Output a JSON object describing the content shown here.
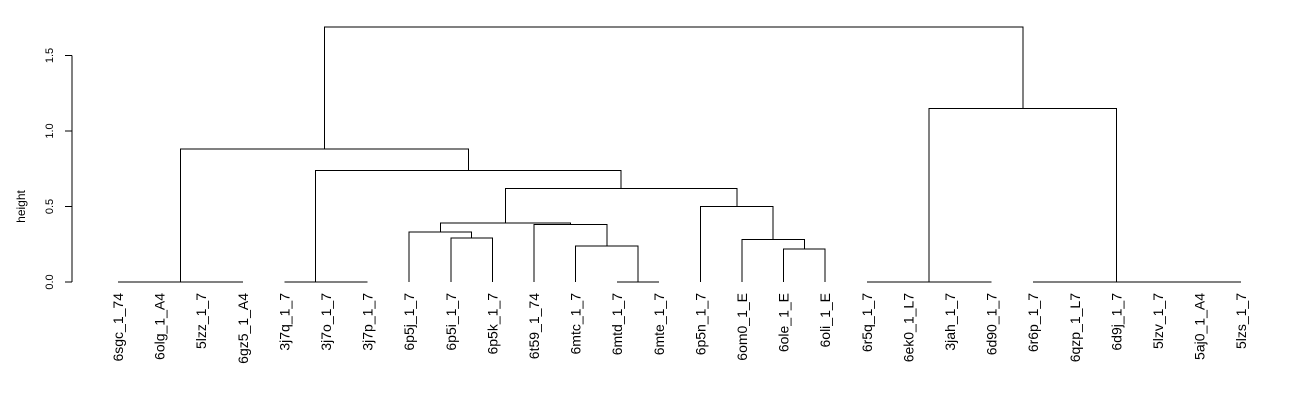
{
  "chart_data": {
    "type": "dendrogram",
    "ylabel": "height",
    "ylim": [
      0,
      1.75
    ],
    "yticks": [
      0.0,
      0.5,
      1.0,
      1.5
    ],
    "ytick_labels": [
      "0.0",
      "0.5",
      "1.0",
      "1.5"
    ],
    "leaves": [
      "6sgc_1_74",
      "6olg_1_A4",
      "5lzz_1_7",
      "6gz5_1_A4",
      "3j7q_1_7",
      "3j7o_1_7",
      "3j7p_1_7",
      "6p5j_1_7",
      "6p5i_1_7",
      "6p5k_1_7",
      "6t59_1_74",
      "6mtc_1_7",
      "6mtd_1_7",
      "6mte_1_7",
      "6p5n_1_7",
      "6om0_1_E",
      "6ole_1_E",
      "6oli_1_E",
      "6r5q_1_7",
      "6ek0_1_L7",
      "3jah_1_7",
      "6d90_1_7",
      "6r6p_1_7",
      "6qzp_1_L7",
      "6d9j_1_7",
      "5lzv_1_7",
      "5aj0_1_A4",
      "5lzs_1_7"
    ],
    "merges": [
      {
        "id": "n1",
        "children": [
          "L0",
          "L1"
        ],
        "height": 0.0
      },
      {
        "id": "n2",
        "children": [
          "L2",
          "L3"
        ],
        "height": 0.0
      },
      {
        "id": "n3",
        "children": [
          "n1",
          "n2"
        ],
        "height": 0.0
      },
      {
        "id": "n4",
        "children": [
          "L5",
          "L6"
        ],
        "height": 0.0
      },
      {
        "id": "n5",
        "children": [
          "L4",
          "n4"
        ],
        "height": 0.0
      },
      {
        "id": "n6",
        "children": [
          "L12",
          "L13"
        ],
        "height": 0.0
      },
      {
        "id": "n7",
        "children": [
          "L18",
          "L19"
        ],
        "height": 0.0
      },
      {
        "id": "n8",
        "children": [
          "L20",
          "L21"
        ],
        "height": 0.0
      },
      {
        "id": "n9",
        "children": [
          "n7",
          "n8"
        ],
        "height": 0.0
      },
      {
        "id": "n10",
        "children": [
          "L22",
          "L23"
        ],
        "height": 0.0
      },
      {
        "id": "n11",
        "children": [
          "L24",
          "L25"
        ],
        "height": 0.0
      },
      {
        "id": "n12",
        "children": [
          "L26",
          "L27"
        ],
        "height": 0.0
      },
      {
        "id": "n13",
        "children": [
          "n11",
          "n12"
        ],
        "height": 0.0
      },
      {
        "id": "n14",
        "children": [
          "n10",
          "n13"
        ],
        "height": 0.0
      },
      {
        "id": "n15",
        "children": [
          "L16",
          "L17"
        ],
        "height": 0.22
      },
      {
        "id": "n16",
        "children": [
          "L11",
          "n6"
        ],
        "height": 0.24
      },
      {
        "id": "n17",
        "children": [
          "L15",
          "n15"
        ],
        "height": 0.28
      },
      {
        "id": "n18",
        "children": [
          "L8",
          "L9"
        ],
        "height": 0.29
      },
      {
        "id": "n19",
        "children": [
          "L7",
          "n18"
        ],
        "height": 0.33
      },
      {
        "id": "n20",
        "children": [
          "L10",
          "n16"
        ],
        "height": 0.38
      },
      {
        "id": "n21",
        "children": [
          "n19",
          "n20"
        ],
        "height": 0.39
      },
      {
        "id": "n22",
        "children": [
          "L14",
          "n17"
        ],
        "height": 0.5
      },
      {
        "id": "n23",
        "children": [
          "n21",
          "n22"
        ],
        "height": 0.62
      },
      {
        "id": "n24",
        "children": [
          "n5",
          "n23"
        ],
        "height": 0.74
      },
      {
        "id": "n25",
        "children": [
          "n3",
          "n24"
        ],
        "height": 0.88
      },
      {
        "id": "n26",
        "children": [
          "n9",
          "n14"
        ],
        "height": 1.15
      },
      {
        "id": "n27",
        "children": [
          "n25",
          "n26"
        ],
        "height": 1.69
      }
    ]
  }
}
